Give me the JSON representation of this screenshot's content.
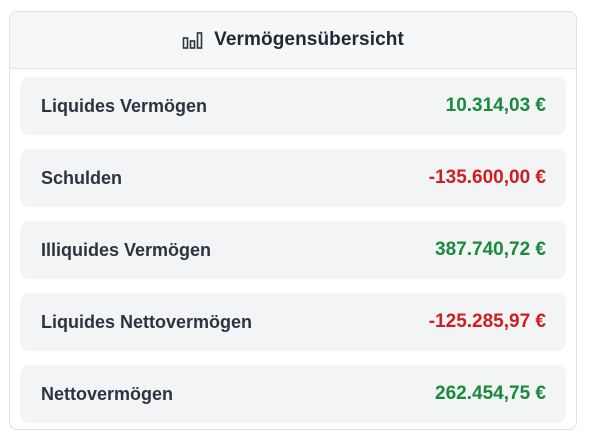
{
  "header": {
    "icon": "bar-chart-icon",
    "title": "Vermögensübersicht"
  },
  "colors": {
    "positive": "#1a8a3a",
    "negative": "#cc1f1f"
  },
  "rows": [
    {
      "label": "Liquides Vermögen",
      "value": "10.314,03 €",
      "status": "positive"
    },
    {
      "label": "Schulden",
      "value": "-135.600,00 €",
      "status": "negative"
    },
    {
      "label": "Illiquides Vermögen",
      "value": "387.740,72 €",
      "status": "positive"
    },
    {
      "label": "Liquides Nettovermögen",
      "value": "-125.285,97 €",
      "status": "negative"
    },
    {
      "label": "Nettovermögen",
      "value": "262.454,75 €",
      "status": "positive"
    }
  ]
}
